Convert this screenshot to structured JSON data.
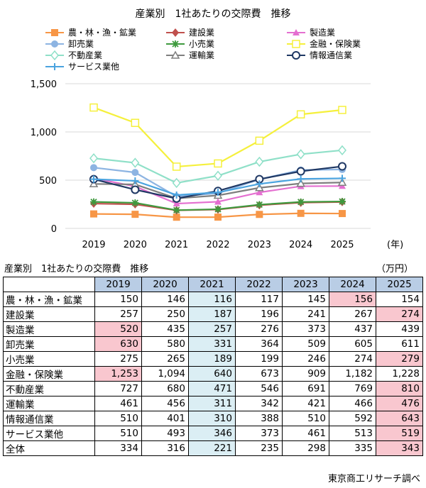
{
  "chart_data": {
    "type": "line",
    "title": "産業別　1社あたりの交際費　推移",
    "x": [
      "2019",
      "2020",
      "2021",
      "2022",
      "2023",
      "2024",
      "2025"
    ],
    "x_unit": "(年)",
    "ylim": [
      0,
      1500
    ],
    "yticks": [
      "0",
      "500",
      "1,000",
      "1,500"
    ],
    "ytick_values": [
      0,
      500,
      1000,
      1500
    ],
    "legend_placement": "top",
    "series": [
      {
        "name": "農・林・漁・鉱業",
        "values": [
          150,
          146,
          116,
          117,
          145,
          156,
          154
        ],
        "color": "#f79646",
        "marker": "square"
      },
      {
        "name": "建設業",
        "values": [
          257,
          250,
          187,
          196,
          241,
          267,
          274
        ],
        "color": "#c0504d",
        "marker": "diamond"
      },
      {
        "name": "製造業",
        "values": [
          520,
          435,
          257,
          276,
          373,
          437,
          439
        ],
        "color": "#e46fd0",
        "marker": "triangle"
      },
      {
        "name": "卸売業",
        "values": [
          630,
          580,
          331,
          364,
          509,
          605,
          611
        ],
        "color": "#8db4e2",
        "marker": "circle"
      },
      {
        "name": "小売業",
        "values": [
          275,
          265,
          189,
          199,
          246,
          274,
          279
        ],
        "color": "#3e9a3e",
        "marker": "star"
      },
      {
        "name": "金融・保険業",
        "values": [
          1253,
          1094,
          640,
          673,
          909,
          1182,
          1228
        ],
        "color": "#f5f03c",
        "marker": "open-square"
      },
      {
        "name": "不動産業",
        "values": [
          727,
          680,
          471,
          546,
          691,
          769,
          810
        ],
        "color": "#8fe0c8",
        "marker": "open-diamond"
      },
      {
        "name": "運輸業",
        "values": [
          461,
          456,
          311,
          342,
          421,
          466,
          476
        ],
        "color": "#7f7f7f",
        "marker": "open-triangle"
      },
      {
        "name": "情報通信業",
        "values": [
          510,
          401,
          310,
          388,
          510,
          592,
          643
        ],
        "color": "#1f3864",
        "marker": "open-circle"
      },
      {
        "name": "サービス業他",
        "values": [
          510,
          493,
          346,
          373,
          461,
          513,
          519
        ],
        "color": "#4aa3df",
        "marker": "plus"
      }
    ]
  },
  "table": {
    "title": "産業別　1社あたりの交際費　推移",
    "unit": "（万円）",
    "years": [
      "2019",
      "2020",
      "2021",
      "2022",
      "2023",
      "2024",
      "2025"
    ],
    "rows": [
      {
        "label": "農・林・漁・鉱業",
        "values": [
          "150",
          "146",
          "116",
          "117",
          "145",
          "156",
          "154"
        ],
        "highlight": [
          5
        ]
      },
      {
        "label": "建設業",
        "values": [
          "257",
          "250",
          "187",
          "196",
          "241",
          "267",
          "274"
        ],
        "highlight": [
          6
        ]
      },
      {
        "label": "製造業",
        "values": [
          "520",
          "435",
          "257",
          "276",
          "373",
          "437",
          "439"
        ],
        "highlight": [
          0
        ]
      },
      {
        "label": "卸売業",
        "values": [
          "630",
          "580",
          "331",
          "364",
          "509",
          "605",
          "611"
        ],
        "highlight": [
          0
        ]
      },
      {
        "label": "小売業",
        "values": [
          "275",
          "265",
          "189",
          "199",
          "246",
          "274",
          "279"
        ],
        "highlight": [
          6
        ]
      },
      {
        "label": "金融・保険業",
        "values": [
          "1,253",
          "1,094",
          "640",
          "673",
          "909",
          "1,182",
          "1,228"
        ],
        "highlight": [
          0
        ]
      },
      {
        "label": "不動産業",
        "values": [
          "727",
          "680",
          "471",
          "546",
          "691",
          "769",
          "810"
        ],
        "highlight": [
          6
        ]
      },
      {
        "label": "運輸業",
        "values": [
          "461",
          "456",
          "311",
          "342",
          "421",
          "466",
          "476"
        ],
        "highlight": [
          6
        ]
      },
      {
        "label": "情報通信業",
        "values": [
          "510",
          "401",
          "310",
          "388",
          "510",
          "592",
          "643"
        ],
        "highlight": [
          6
        ]
      },
      {
        "label": "サービス業他",
        "values": [
          "510",
          "493",
          "346",
          "373",
          "461",
          "513",
          "519"
        ],
        "highlight": [
          6
        ]
      },
      {
        "label": "全体",
        "values": [
          "334",
          "316",
          "221",
          "235",
          "298",
          "335",
          "343"
        ],
        "highlight": [
          6
        ]
      }
    ],
    "colors": {
      "header": "#b9cde5",
      "col_2021": "#dbeef4",
      "highlight": "#f9c7cf"
    }
  },
  "source": "東京商工リサーチ調べ"
}
